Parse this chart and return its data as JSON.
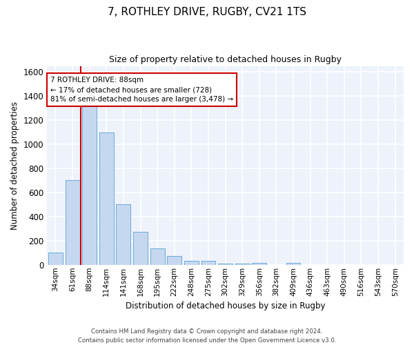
{
  "title_line1": "7, ROTHLEY DRIVE, RUGBY, CV21 1TS",
  "title_line2": "Size of property relative to detached houses in Rugby",
  "xlabel": "Distribution of detached houses by size in Rugby",
  "ylabel": "Number of detached properties",
  "bar_color": "#c5d8f0",
  "bar_edge_color": "#6aaad4",
  "categories": [
    "34sqm",
    "61sqm",
    "88sqm",
    "114sqm",
    "141sqm",
    "168sqm",
    "195sqm",
    "222sqm",
    "248sqm",
    "275sqm",
    "302sqm",
    "329sqm",
    "356sqm",
    "382sqm",
    "409sqm",
    "436sqm",
    "463sqm",
    "490sqm",
    "516sqm",
    "543sqm",
    "570sqm"
  ],
  "values": [
    100,
    700,
    1330,
    1100,
    500,
    275,
    137,
    75,
    35,
    35,
    10,
    10,
    15,
    0,
    15,
    0,
    0,
    0,
    0,
    0,
    0
  ],
  "ylim": [
    0,
    1650
  ],
  "yticks": [
    0,
    200,
    400,
    600,
    800,
    1000,
    1200,
    1400,
    1600
  ],
  "red_line_index": 2,
  "annotation_text": "7 ROTHLEY DRIVE: 88sqm\n← 17% of detached houses are smaller (728)\n81% of semi-detached houses are larger (3,478) →",
  "annotation_box_color": "#ffffff",
  "annotation_border_color": "#cc0000",
  "background_color": "#edf2fb",
  "grid_color": "#ffffff",
  "footer_line1": "Contains HM Land Registry data © Crown copyright and database right 2024.",
  "footer_line2": "Contains public sector information licensed under the Open Government Licence v3.0."
}
